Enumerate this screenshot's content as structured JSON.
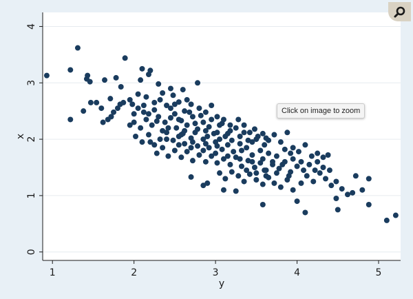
{
  "zoom_tooltip": "Click on image to zoom",
  "zoom_icon": "magnifier-icon",
  "colors": {
    "point": "#1a3c5e",
    "background": "#e8f0f6",
    "plot_bg": "#ffffff",
    "grid": "#e6ebef",
    "axis": "#1a1a1a"
  },
  "chart_data": {
    "type": "scatter",
    "title": "",
    "xlabel": "y",
    "ylabel": "x",
    "xlim": [
      0.88,
      5.27
    ],
    "ylim": [
      -0.15,
      4.25
    ],
    "xticks": [
      1,
      2,
      3,
      4,
      5
    ],
    "yticks": [
      0,
      1,
      2,
      3,
      4
    ],
    "grid": "horizontal",
    "legend": "none",
    "points": [
      [
        0.93,
        3.13
      ],
      [
        1.22,
        3.23
      ],
      [
        1.31,
        3.62
      ],
      [
        1.89,
        3.44
      ],
      [
        1.43,
        3.13
      ],
      [
        1.42,
        3.07
      ],
      [
        1.46,
        3.02
      ],
      [
        1.54,
        2.65
      ],
      [
        1.47,
        2.65
      ],
      [
        1.38,
        2.5
      ],
      [
        1.22,
        2.35
      ],
      [
        1.64,
        3.05
      ],
      [
        1.78,
        3.09
      ],
      [
        1.84,
        2.93
      ],
      [
        1.71,
        2.72
      ],
      [
        1.87,
        2.65
      ],
      [
        1.95,
        2.7
      ],
      [
        1.8,
        2.55
      ],
      [
        1.72,
        2.4
      ],
      [
        1.68,
        2.35
      ],
      [
        1.62,
        2.3
      ],
      [
        1.75,
        2.48
      ],
      [
        1.83,
        2.62
      ],
      [
        1.6,
        2.55
      ],
      [
        2.08,
        3.05
      ],
      [
        2.1,
        3.25
      ],
      [
        2.2,
        3.22
      ],
      [
        2.3,
        2.98
      ],
      [
        2.45,
        2.9
      ],
      [
        2.6,
        2.88
      ],
      [
        2.78,
        3.0
      ],
      [
        2.18,
        3.15
      ],
      [
        2.05,
        2.55
      ],
      [
        2.12,
        2.6
      ],
      [
        2.18,
        2.45
      ],
      [
        2.25,
        2.52
      ],
      [
        2.32,
        2.7
      ],
      [
        2.4,
        2.6
      ],
      [
        2.48,
        2.78
      ],
      [
        2.55,
        2.66
      ],
      [
        2.62,
        2.5
      ],
      [
        2.7,
        2.62
      ],
      [
        2.8,
        2.55
      ],
      [
        2.88,
        2.48
      ],
      [
        2.95,
        2.6
      ],
      [
        3.02,
        2.4
      ],
      [
        3.1,
        2.35
      ],
      [
        2.0,
        2.3
      ],
      [
        2.08,
        2.2
      ],
      [
        2.15,
        2.35
      ],
      [
        2.22,
        2.25
      ],
      [
        2.3,
        2.4
      ],
      [
        2.38,
        2.3
      ],
      [
        2.45,
        2.38
      ],
      [
        2.52,
        2.2
      ],
      [
        2.58,
        2.33
      ],
      [
        2.65,
        2.25
      ],
      [
        2.72,
        2.4
      ],
      [
        2.78,
        2.18
      ],
      [
        2.85,
        2.3
      ],
      [
        2.92,
        2.22
      ],
      [
        2.98,
        2.1
      ],
      [
        3.05,
        2.25
      ],
      [
        3.12,
        2.05
      ],
      [
        3.18,
        2.15
      ],
      [
        3.25,
        2.2
      ],
      [
        2.02,
        2.05
      ],
      [
        2.1,
        1.95
      ],
      [
        2.18,
        2.08
      ],
      [
        2.25,
        1.9
      ],
      [
        2.32,
        2.0
      ],
      [
        2.4,
        2.12
      ],
      [
        2.48,
        1.98
      ],
      [
        2.55,
        2.05
      ],
      [
        2.62,
        1.92
      ],
      [
        2.7,
        2.02
      ],
      [
        2.78,
        1.88
      ],
      [
        2.85,
        2.0
      ],
      [
        2.92,
        1.85
      ],
      [
        3.0,
        1.95
      ],
      [
        3.08,
        1.82
      ],
      [
        3.15,
        1.9
      ],
      [
        3.22,
        1.78
      ],
      [
        3.3,
        1.92
      ],
      [
        3.38,
        1.85
      ],
      [
        3.45,
        1.95
      ],
      [
        3.52,
        2.05
      ],
      [
        3.6,
        1.9
      ],
      [
        2.28,
        1.75
      ],
      [
        2.35,
        1.85
      ],
      [
        2.42,
        1.7
      ],
      [
        2.5,
        1.8
      ],
      [
        2.58,
        1.68
      ],
      [
        2.65,
        1.78
      ],
      [
        2.72,
        1.62
      ],
      [
        2.8,
        1.72
      ],
      [
        2.88,
        1.6
      ],
      [
        2.95,
        1.7
      ],
      [
        3.02,
        1.58
      ],
      [
        3.1,
        1.65
      ],
      [
        3.18,
        1.55
      ],
      [
        3.25,
        1.68
      ],
      [
        3.32,
        1.52
      ],
      [
        3.4,
        1.62
      ],
      [
        3.48,
        1.5
      ],
      [
        3.55,
        1.58
      ],
      [
        3.62,
        1.45
      ],
      [
        3.7,
        1.55
      ],
      [
        3.78,
        1.48
      ],
      [
        3.85,
        1.6
      ],
      [
        3.92,
        1.42
      ],
      [
        4.0,
        1.52
      ],
      [
        3.28,
        2.35
      ],
      [
        3.35,
        2.25
      ],
      [
        3.42,
        2.12
      ],
      [
        3.5,
        2.0
      ],
      [
        3.58,
        2.1
      ],
      [
        3.65,
        1.98
      ],
      [
        3.72,
        2.08
      ],
      [
        3.8,
        1.95
      ],
      [
        3.88,
        2.12
      ],
      [
        3.95,
        1.85
      ],
      [
        4.02,
        1.78
      ],
      [
        4.1,
        1.9
      ],
      [
        4.18,
        1.7
      ],
      [
        4.25,
        1.75
      ],
      [
        4.32,
        1.68
      ],
      [
        4.38,
        1.72
      ],
      [
        3.05,
        1.4
      ],
      [
        3.12,
        1.3
      ],
      [
        3.2,
        1.42
      ],
      [
        3.28,
        1.35
      ],
      [
        3.35,
        1.25
      ],
      [
        3.42,
        1.38
      ],
      [
        3.5,
        1.28
      ],
      [
        3.58,
        1.2
      ],
      [
        3.65,
        1.32
      ],
      [
        3.72,
        1.22
      ],
      [
        3.8,
        1.15
      ],
      [
        3.88,
        1.28
      ],
      [
        3.95,
        1.1
      ],
      [
        4.05,
        1.22
      ],
      [
        4.12,
        1.35
      ],
      [
        4.2,
        1.25
      ],
      [
        4.28,
        1.4
      ],
      [
        4.35,
        1.3
      ],
      [
        4.42,
        1.18
      ],
      [
        4.48,
        1.25
      ],
      [
        4.55,
        1.12
      ],
      [
        4.62,
        1.02
      ],
      [
        4.68,
        1.05
      ],
      [
        4.72,
        1.35
      ],
      [
        4.8,
        1.1
      ],
      [
        4.88,
        1.3
      ],
      [
        4.48,
        0.95
      ],
      [
        4.5,
        0.75
      ],
      [
        4.88,
        0.84
      ],
      [
        5.1,
        0.56
      ],
      [
        5.21,
        0.65
      ],
      [
        4.1,
        0.7
      ],
      [
        4.0,
        0.9
      ],
      [
        3.58,
        0.84
      ],
      [
        3.25,
        1.08
      ],
      [
        2.85,
        1.18
      ],
      [
        2.7,
        1.33
      ],
      [
        2.9,
        1.22
      ],
      [
        3.1,
        1.1
      ],
      [
        3.6,
        1.45
      ],
      [
        2.2,
        1.95
      ],
      [
        2.35,
        2.15
      ],
      [
        2.5,
        2.45
      ],
      [
        2.62,
        2.15
      ],
      [
        2.75,
        2.28
      ],
      [
        2.9,
        2.05
      ],
      [
        3.05,
        2.0
      ],
      [
        3.15,
        2.1
      ],
      [
        3.3,
        2.05
      ],
      [
        3.4,
        1.98
      ],
      [
        3.55,
        1.8
      ],
      [
        3.65,
        1.75
      ],
      [
        3.75,
        1.7
      ],
      [
        3.85,
        1.82
      ],
      [
        3.95,
        1.65
      ],
      [
        4.05,
        1.6
      ],
      [
        2.45,
        2.55
      ],
      [
        2.55,
        2.35
      ],
      [
        2.68,
        2.48
      ],
      [
        2.82,
        2.42
      ],
      [
        2.95,
        2.35
      ],
      [
        3.08,
        2.28
      ],
      [
        3.2,
        1.98
      ],
      [
        3.32,
        1.8
      ],
      [
        3.45,
        1.72
      ],
      [
        3.58,
        1.65
      ],
      [
        3.7,
        1.6
      ],
      [
        3.82,
        1.55
      ],
      [
        3.92,
        1.75
      ],
      [
        4.15,
        1.55
      ],
      [
        4.22,
        1.45
      ],
      [
        4.32,
        1.5
      ],
      [
        2.0,
        2.45
      ],
      [
        1.95,
        2.25
      ],
      [
        2.05,
        2.8
      ],
      [
        2.15,
        2.75
      ],
      [
        2.25,
        2.65
      ],
      [
        2.35,
        2.82
      ],
      [
        2.5,
        2.62
      ],
      [
        2.65,
        2.7
      ],
      [
        2.4,
        2.0
      ],
      [
        2.55,
        1.9
      ],
      [
        2.7,
        1.85
      ],
      [
        2.85,
        1.8
      ],
      [
        3.0,
        1.75
      ],
      [
        3.15,
        1.7
      ],
      [
        3.3,
        1.65
      ],
      [
        3.45,
        1.6
      ],
      [
        2.6,
        2.1
      ],
      [
        2.75,
        2.12
      ],
      [
        2.88,
        2.15
      ],
      [
        3.02,
        2.12
      ],
      [
        3.18,
        2.25
      ],
      [
        3.35,
        2.12
      ],
      [
        3.48,
        2.18
      ],
      [
        3.62,
        2.02
      ],
      [
        1.98,
        2.62
      ],
      [
        2.12,
        2.48
      ],
      [
        2.28,
        2.32
      ],
      [
        2.42,
        2.2
      ],
      [
        2.58,
        2.08
      ],
      [
        2.72,
        1.95
      ],
      [
        2.88,
        1.92
      ],
      [
        3.02,
        1.88
      ],
      [
        3.62,
        1.35
      ],
      [
        3.75,
        1.4
      ],
      [
        3.9,
        1.35
      ],
      [
        4.08,
        1.45
      ],
      [
        4.25,
        1.6
      ],
      [
        4.4,
        1.45
      ],
      [
        3.5,
        1.4
      ],
      [
        3.38,
        1.45
      ]
    ]
  }
}
